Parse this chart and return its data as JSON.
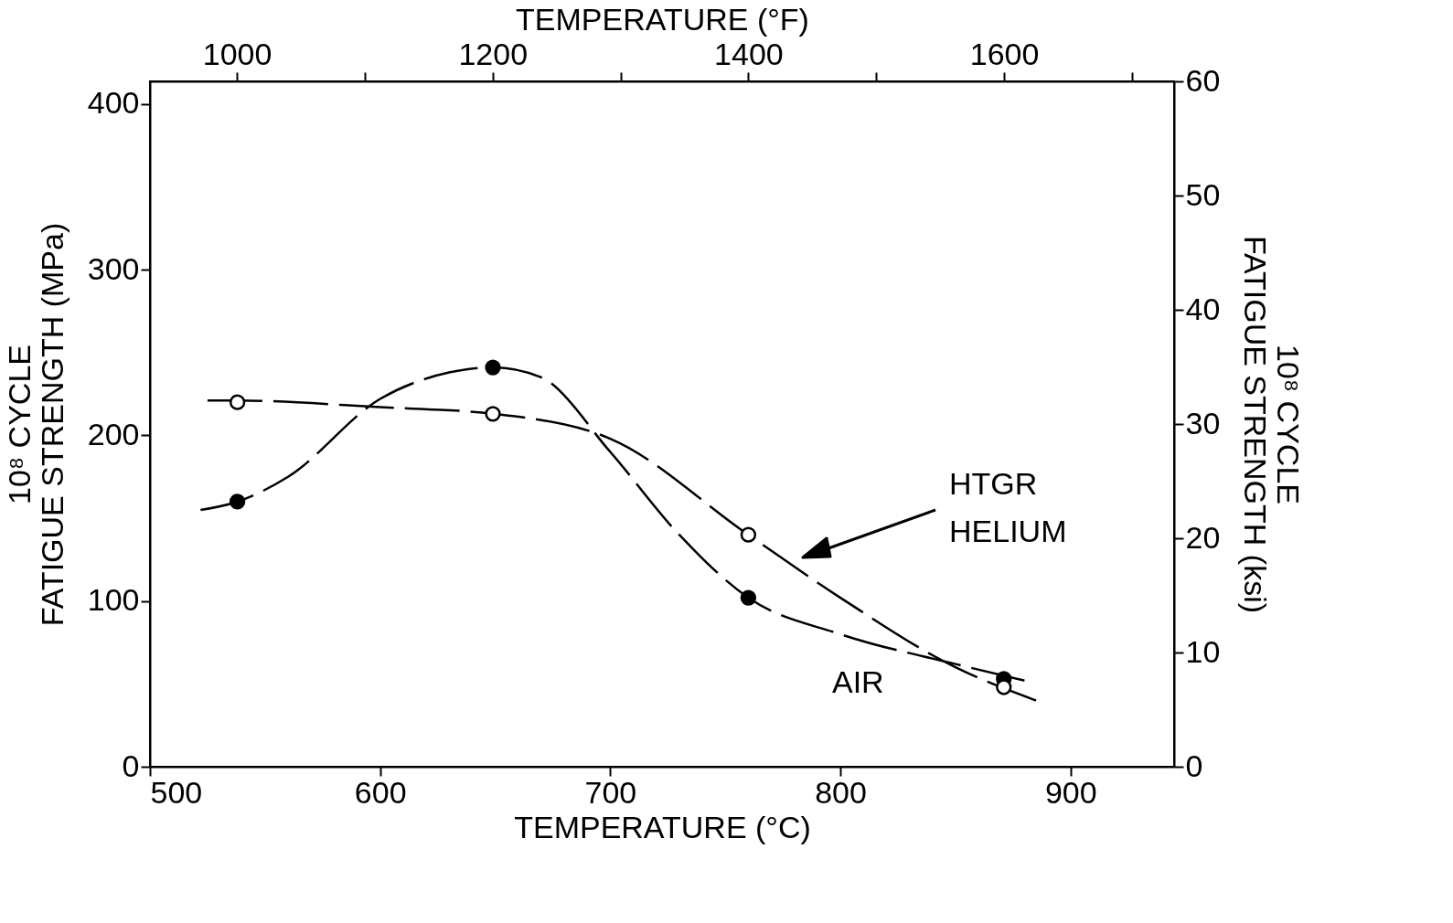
{
  "chart_data": {
    "type": "scatter",
    "xlabel": "TEMPERATURE (°C)",
    "ylabel": "10⁸ CYCLE\nFATIGUE STRENGTH (MPa)",
    "y2label": "10⁸ CYCLE\nFATIGUE STRENGTH (ksi)",
    "x2label": "TEMPERATURE (°F)",
    "xlim": [
      500,
      945
    ],
    "xticks": [
      500,
      600,
      700,
      800,
      900
    ],
    "ylim": [
      0,
      413.7
    ],
    "yticks": [
      0,
      100,
      200,
      300,
      400
    ],
    "y2lim": [
      0,
      60
    ],
    "y2ticks": [
      0,
      10,
      20,
      30,
      40,
      50,
      60
    ],
    "x2lim": [
      932,
      1733
    ],
    "x2ticks": [
      {
        "value": 1000,
        "label": "1000"
      },
      {
        "value": 1100,
        "label": null
      },
      {
        "value": 1200,
        "label": "1200"
      },
      {
        "value": 1300,
        "label": null
      },
      {
        "value": 1400,
        "label": "1400"
      },
      {
        "value": 1500,
        "label": null
      },
      {
        "value": 1600,
        "label": "1600"
      },
      {
        "value": 1700,
        "label": null
      }
    ],
    "grid": false,
    "line_style": "dashed",
    "series": [
      {
        "type": "line",
        "color": "#000000",
        "marker": "none",
        "x": [
          522,
          538,
          560,
          600,
          630,
          649,
          670,
          700,
          730,
          760,
          800,
          850,
          880
        ],
        "values": [
          155,
          160,
          175,
          222,
          238,
          241,
          235,
          190,
          140,
          102,
          80,
          62,
          52
        ]
      },
      {
        "type": "line",
        "color": "#000000",
        "marker": "none",
        "x": [
          525,
          538,
          600,
          649,
          700,
          760,
          800,
          850,
          885
        ],
        "values": [
          221,
          221,
          217,
          213,
          198,
          140,
          102,
          60,
          40
        ]
      },
      {
        "color": "#000000",
        "marker": "circle",
        "x": [
          538,
          649,
          760,
          871
        ],
        "values": [
          160,
          241,
          102,
          53
        ]
      },
      {
        "color": "#ffffff",
        "marker": "circle",
        "x": [
          538,
          649,
          760,
          871
        ],
        "values": [
          220,
          213,
          140,
          48
        ]
      }
    ],
    "annotations": [
      "HTGR\nHELIUM",
      "AIR"
    ]
  }
}
